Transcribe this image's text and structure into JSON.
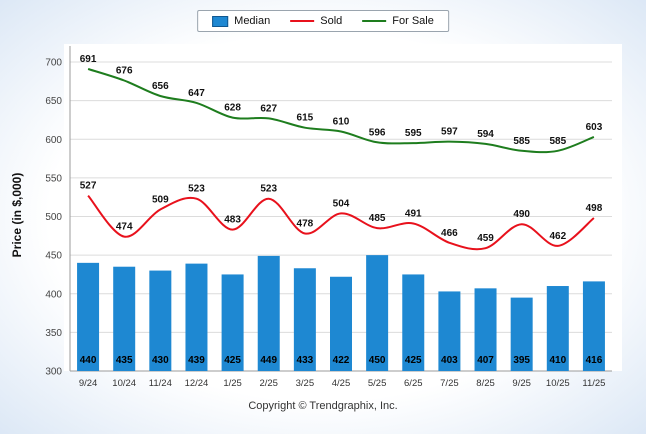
{
  "page": {
    "footer": "Copyright © Trendgraphix, Inc."
  },
  "chart_data": {
    "type": "bar+line",
    "title": "",
    "xlabel": "",
    "ylabel": "Price (in $,000)",
    "ylim": [
      300,
      700
    ],
    "ytick_step": 50,
    "grid": true,
    "legend_position": "top-center",
    "categories": [
      "9/24",
      "10/24",
      "11/24",
      "12/24",
      "1/25",
      "2/25",
      "3/25",
      "4/25",
      "5/25",
      "6/25",
      "7/25",
      "8/25",
      "9/25",
      "10/25",
      "11/25"
    ],
    "series": [
      {
        "name": "Median",
        "type": "bar",
        "color": "#1e88d2",
        "values": [
          440,
          435,
          430,
          439,
          425,
          449,
          433,
          422,
          450,
          425,
          403,
          407,
          395,
          410,
          416
        ]
      },
      {
        "name": "Sold",
        "type": "line",
        "color": "#e8111c",
        "values": [
          527,
          474,
          509,
          523,
          483,
          523,
          478,
          504,
          485,
          491,
          466,
          459,
          490,
          462,
          498
        ]
      },
      {
        "name": "For Sale",
        "type": "line",
        "color": "#1e7d1e",
        "values": [
          691,
          676,
          656,
          647,
          628,
          627,
          615,
          610,
          596,
          595,
          597,
          594,
          585,
          585,
          603
        ]
      }
    ]
  }
}
